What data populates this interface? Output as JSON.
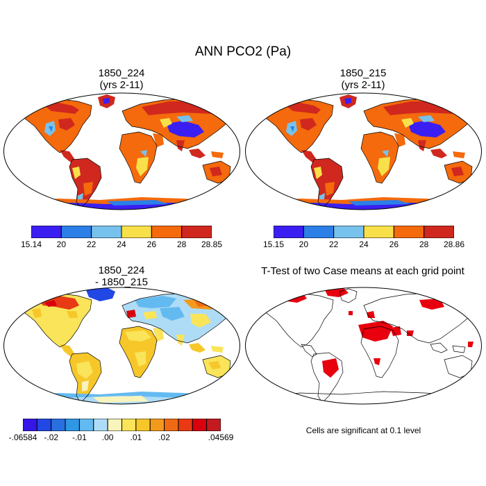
{
  "figure": {
    "title": "ANN PCO2 (Pa)"
  },
  "panels": [
    {
      "title_line1": "1850_224",
      "title_line2": "(yrs 2-11)",
      "colorbar": {
        "colors": [
          "#3b1ff2",
          "#2b7fe6",
          "#77c2ec",
          "#f8e04a",
          "#f46a0c",
          "#d0281e"
        ],
        "labels": [
          "15.14",
          "20",
          "22",
          "24",
          "26",
          "28",
          "28.85"
        ]
      }
    },
    {
      "title_line1": "1850_215",
      "title_line2": "(yrs 2-11)",
      "colorbar": {
        "colors": [
          "#3b1ff2",
          "#2b7fe6",
          "#77c2ec",
          "#f8e04a",
          "#f46a0c",
          "#d0281e"
        ],
        "labels": [
          "15.15",
          "20",
          "22",
          "24",
          "26",
          "28",
          "28.86"
        ]
      }
    },
    {
      "title_line1": "1850_224",
      "title_line2": "- 1850_215",
      "colorbar": {
        "colors": [
          "#3516e6",
          "#2148e4",
          "#2a6fe0",
          "#2f97e4",
          "#63baf0",
          "#aedcf6",
          "#f9f3bc",
          "#f9e45a",
          "#f7c72a",
          "#f39a1c",
          "#ef6a14",
          "#e83a14",
          "#d8000e",
          "#c21a1e"
        ],
        "labels": [
          "-.06584",
          "-.02",
          "-.01",
          ".00",
          ".01",
          ".02",
          ".04569"
        ]
      }
    },
    {
      "title_line1": "T-Test of two Case means at each grid point",
      "note": "Cells are significant at 0.1 level"
    }
  ]
}
